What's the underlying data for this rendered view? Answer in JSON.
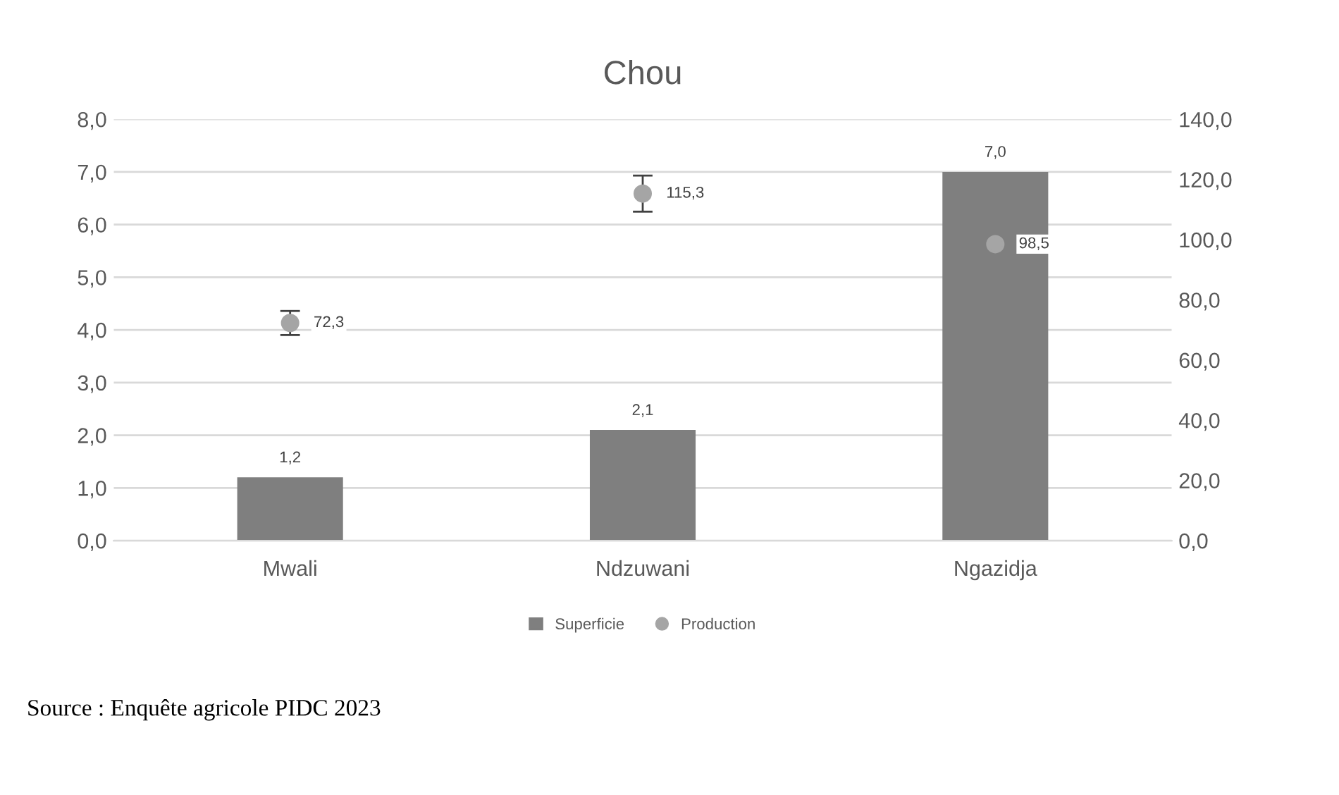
{
  "chart_data": {
    "type": "bar",
    "title": "Chou",
    "categories": [
      "Mwali",
      "Ndzuwani",
      "Ngazidja"
    ],
    "series": [
      {
        "name": "Superficie",
        "color": "#7f7f7f",
        "values": [
          1.2,
          2.1,
          7.0
        ],
        "value_labels": [
          "1,2",
          "2,1",
          "7,0"
        ]
      },
      {
        "name": "Production",
        "type": "scatter",
        "axis": "y2",
        "color": "#a5a5a5",
        "marker": "circle",
        "values": [
          72.3,
          115.3,
          98.5
        ],
        "errors": [
          4,
          6,
          null
        ],
        "value_labels": [
          "72,3",
          "115,3",
          "98,5"
        ]
      }
    ],
    "ylim": [
      0,
      8
    ],
    "yticks": [
      {
        "value": 0,
        "label": "0,0"
      },
      {
        "value": 1,
        "label": "1,0"
      },
      {
        "value": 2,
        "label": "2,0"
      },
      {
        "value": 3,
        "label": "3,0"
      },
      {
        "value": 4,
        "label": "4,0"
      },
      {
        "value": 5,
        "label": "5,0"
      },
      {
        "value": 6,
        "label": "6,0"
      },
      {
        "value": 7,
        "label": "7,0"
      },
      {
        "value": 8,
        "label": "8,0"
      }
    ],
    "y2lim": [
      0,
      140
    ],
    "y2ticks": [
      {
        "value": 0,
        "label": "0,0"
      },
      {
        "value": 20,
        "label": "20,0"
      },
      {
        "value": 40,
        "label": "40,0"
      },
      {
        "value": 60,
        "label": "60,0"
      },
      {
        "value": 80,
        "label": "80,0"
      },
      {
        "value": 100,
        "label": "100,0"
      },
      {
        "value": 120,
        "label": "120,0"
      },
      {
        "value": 140,
        "label": "140,0"
      }
    ],
    "grid": "y",
    "legend": "bottom",
    "annotations": [
      "Source : Enquête agricole PIDC 2023"
    ]
  }
}
